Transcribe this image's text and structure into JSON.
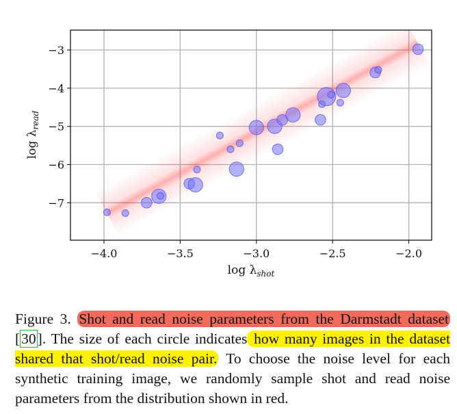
{
  "chart_data": {
    "type": "scatter",
    "xlabel": "log λ",
    "xlabel_sub": "shot",
    "ylabel": "log λ",
    "ylabel_sub": "read",
    "xlim": [
      -4.22,
      -1.85
    ],
    "ylim": [
      -7.98,
      -2.48
    ],
    "xticks": [
      -4.0,
      -3.5,
      -3.0,
      -2.5,
      -2.0
    ],
    "xtick_labels": [
      "−4.0",
      "−3.5",
      "−3.0",
      "−2.5",
      "−2.0"
    ],
    "yticks": [
      -3,
      -4,
      -5,
      -6,
      -7
    ],
    "ytick_labels": [
      "−3",
      "−4",
      "−5",
      "−6",
      "−7"
    ],
    "grid": true,
    "distribution_band": {
      "color": "#ff0000",
      "x_range": [
        -3.98,
        -1.94
      ],
      "line": {
        "slope": 2.18,
        "intercept": 1.4
      },
      "spread": 0.3
    },
    "point_color": "#7373ff",
    "points": [
      {
        "x": -3.98,
        "y": -7.25,
        "size": 1
      },
      {
        "x": -3.86,
        "y": -7.27,
        "size": 1
      },
      {
        "x": -3.72,
        "y": -7.0,
        "size": 2
      },
      {
        "x": -3.64,
        "y": -6.83,
        "size": 3
      },
      {
        "x": -3.63,
        "y": -6.82,
        "size": 1
      },
      {
        "x": -3.44,
        "y": -6.5,
        "size": 2
      },
      {
        "x": -3.4,
        "y": -6.53,
        "size": 3
      },
      {
        "x": -3.39,
        "y": -6.13,
        "size": 1
      },
      {
        "x": -3.24,
        "y": -5.24,
        "size": 1
      },
      {
        "x": -3.17,
        "y": -5.6,
        "size": 1
      },
      {
        "x": -3.13,
        "y": -6.12,
        "size": 3
      },
      {
        "x": -3.11,
        "y": -5.44,
        "size": 1
      },
      {
        "x": -3.0,
        "y": -5.03,
        "size": 3
      },
      {
        "x": -2.88,
        "y": -5.0,
        "size": 3
      },
      {
        "x": -2.86,
        "y": -5.6,
        "size": 2
      },
      {
        "x": -2.83,
        "y": -4.83,
        "size": 2
      },
      {
        "x": -2.76,
        "y": -4.7,
        "size": 3
      },
      {
        "x": -2.58,
        "y": -4.83,
        "size": 2
      },
      {
        "x": -2.57,
        "y": -4.42,
        "size": 1
      },
      {
        "x": -2.54,
        "y": -4.22,
        "size": 4
      },
      {
        "x": -2.51,
        "y": -4.17,
        "size": 1
      },
      {
        "x": -2.45,
        "y": -4.38,
        "size": 1
      },
      {
        "x": -2.43,
        "y": -4.06,
        "size": 3
      },
      {
        "x": -2.22,
        "y": -3.59,
        "size": 2
      },
      {
        "x": -2.2,
        "y": -3.52,
        "size": 1
      },
      {
        "x": -1.94,
        "y": -2.98,
        "size": 2
      }
    ]
  },
  "caption": {
    "prefix": "Figure 3. ",
    "red_highlight_1": "Shot and read noise parameters from the Darmstadt dataset",
    "after_red": " [",
    "ref": "30",
    "after_ref": "].  The size of each circle indicates",
    "yellow_highlight": " how many images in the dataset shared that shot/read noise pair.",
    "rest": " To choose the noise level for each synthetic training image, we randomly sample shot and read noise parameters from the distribution shown in red."
  }
}
